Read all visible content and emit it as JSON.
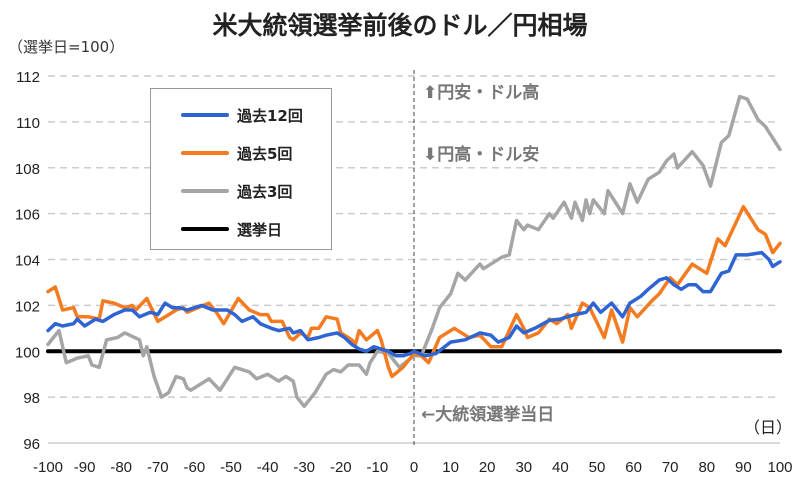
{
  "chart_data": {
    "type": "line",
    "title": "米大統領選挙前後のドル／円相場",
    "ylabel": "（選挙日=100）",
    "xlabel": "（日）",
    "xlim": [
      -100,
      100
    ],
    "ylim": [
      96,
      112
    ],
    "xticks": [
      -100,
      -90,
      -80,
      -70,
      -60,
      -50,
      -40,
      -30,
      -20,
      -10,
      0,
      10,
      20,
      30,
      40,
      50,
      60,
      70,
      80,
      90,
      100
    ],
    "yticks": [
      96,
      98,
      100,
      102,
      104,
      106,
      108,
      110,
      112
    ],
    "grid": "horizontal dashed",
    "legend_position": "top-left",
    "annotations": {
      "up": "⬆円安・ドル高",
      "down": "⬇円高・ドル安",
      "election_day": "←大統領選挙当日"
    },
    "series": [
      {
        "name": "過去12回",
        "color": "#2F64D3",
        "x": [
          -100,
          -98,
          -96,
          -93,
          -92,
          -90,
          -87,
          -85,
          -82,
          -79,
          -77,
          -75,
          -72,
          -70,
          -68,
          -66,
          -64,
          -62,
          -58,
          -55,
          -51,
          -49,
          -47,
          -44,
          -42,
          -39,
          -37,
          -34,
          -33,
          -31,
          -29,
          -26,
          -24,
          -21,
          -19,
          -17,
          -15,
          -13,
          -11,
          -9,
          -7,
          -5,
          -3,
          -1,
          0,
          3,
          6,
          10,
          14,
          18,
          21,
          23,
          26,
          28,
          30,
          33,
          37,
          40,
          44,
          47,
          49,
          51,
          54,
          57,
          59,
          62,
          64,
          67,
          69,
          71,
          73,
          75,
          77,
          79,
          81,
          84,
          86,
          88,
          91,
          95,
          97,
          98,
          100
        ],
        "y": [
          100.9,
          101.2,
          101.1,
          101.2,
          101.4,
          101.1,
          101.4,
          101.3,
          101.6,
          101.8,
          101.8,
          101.5,
          101.7,
          101.6,
          102.1,
          101.9,
          101.9,
          101.8,
          102.0,
          101.8,
          101.8,
          101.6,
          101.3,
          101.5,
          101.2,
          101.0,
          100.9,
          101.0,
          100.8,
          100.9,
          100.5,
          100.6,
          100.7,
          100.8,
          100.6,
          100.3,
          100.1,
          100.0,
          100.2,
          100.1,
          100.0,
          99.8,
          99.8,
          99.9,
          100.0,
          99.8,
          99.9,
          100.4,
          100.5,
          100.8,
          100.7,
          100.4,
          100.6,
          101.1,
          100.8,
          101.0,
          101.35,
          101.4,
          101.6,
          101.7,
          102.1,
          101.7,
          102.1,
          101.5,
          102.1,
          102.4,
          102.7,
          103.1,
          103.2,
          102.9,
          102.7,
          102.9,
          102.9,
          102.6,
          102.6,
          103.4,
          103.5,
          104.2,
          104.2,
          104.3,
          104.0,
          103.7,
          103.9
        ]
      },
      {
        "name": "過去5回",
        "color": "#F47B20",
        "x": [
          -100,
          -98,
          -96,
          -93,
          -92,
          -89,
          -86,
          -85,
          -82,
          -79,
          -77,
          -76,
          -73,
          -70,
          -67,
          -65,
          -63,
          -62,
          -56,
          -54,
          -52,
          -48,
          -45,
          -42,
          -40,
          -39,
          -36,
          -34,
          -33,
          -31,
          -29,
          -28,
          -26,
          -24,
          -21,
          -20,
          -17,
          -16,
          -15,
          -13,
          -10,
          -9,
          -7,
          -6,
          -3,
          0,
          2,
          4,
          7,
          11,
          15,
          18,
          21,
          24,
          28,
          30,
          31,
          34,
          37,
          39,
          42,
          43,
          46,
          48,
          52,
          54,
          57,
          59,
          61,
          65,
          67,
          70,
          72,
          76,
          80,
          83,
          85,
          90,
          94,
          96,
          98,
          100
        ],
        "y": [
          102.6,
          102.8,
          101.8,
          101.9,
          101.5,
          101.5,
          101.4,
          102.2,
          102.1,
          101.9,
          102.0,
          101.8,
          102.3,
          101.3,
          101.6,
          101.8,
          101.9,
          101.7,
          102.1,
          101.7,
          101.2,
          102.3,
          101.8,
          101.6,
          101.6,
          101.3,
          101.3,
          100.6,
          100.5,
          100.8,
          100.6,
          101.0,
          101.0,
          101.5,
          101.4,
          100.8,
          100.5,
          100.3,
          100.9,
          100.5,
          100.9,
          100.5,
          99.3,
          98.9,
          99.3,
          99.9,
          99.8,
          99.5,
          100.6,
          101.0,
          100.6,
          100.7,
          100.2,
          100.2,
          101.6,
          101.0,
          100.6,
          100.8,
          101.4,
          101.2,
          101.6,
          101.0,
          102.1,
          101.9,
          100.6,
          101.8,
          100.4,
          101.9,
          101.5,
          102.2,
          102.5,
          103.2,
          102.9,
          103.8,
          103.4,
          104.9,
          104.6,
          106.3,
          105.3,
          105.1,
          104.3,
          104.7
        ]
      },
      {
        "name": "過去3回",
        "color": "#A5A5A5",
        "x": [
          -100,
          -97,
          -95,
          -92,
          -89,
          -88,
          -86,
          -84,
          -81,
          -79,
          -75,
          -74,
          -73,
          -71,
          -69,
          -67,
          -65,
          -63,
          -62,
          -61,
          -58,
          -56,
          -53,
          -49,
          -45,
          -43,
          -40,
          -37,
          -35,
          -33,
          -32,
          -30,
          -27,
          -24,
          -22,
          -20,
          -18,
          -15,
          -13,
          -12,
          -10,
          -7,
          -4,
          0,
          2,
          5,
          7,
          10,
          12,
          14,
          18,
          19,
          24,
          26,
          28,
          30,
          31,
          34,
          37,
          38,
          41,
          43,
          44,
          46,
          47,
          48,
          49,
          52,
          53,
          57,
          59,
          61,
          64,
          67,
          69,
          71,
          72,
          76,
          79,
          81,
          84,
          86,
          89,
          91,
          94,
          96,
          100
        ],
        "y": [
          100.3,
          100.9,
          99.5,
          99.7,
          99.8,
          99.4,
          99.3,
          100.5,
          100.6,
          100.8,
          100.5,
          99.8,
          100.2,
          98.9,
          98.0,
          98.2,
          98.9,
          98.8,
          98.4,
          98.3,
          98.6,
          98.8,
          98.3,
          99.3,
          99.1,
          98.8,
          99.0,
          98.7,
          98.9,
          98.7,
          98.0,
          97.6,
          98.2,
          99.0,
          99.2,
          99.1,
          99.4,
          99.4,
          99.0,
          99.5,
          100.0,
          99.9,
          99.3,
          99.8,
          99.8,
          101.0,
          101.9,
          102.5,
          103.4,
          103.1,
          103.8,
          103.6,
          104.1,
          104.2,
          105.7,
          105.3,
          105.5,
          105.3,
          106.0,
          105.8,
          106.5,
          105.8,
          106.5,
          105.7,
          106.6,
          106.0,
          106.6,
          106.0,
          107.0,
          106.0,
          107.3,
          106.5,
          107.5,
          107.8,
          108.3,
          108.6,
          108.0,
          108.7,
          108.1,
          107.2,
          109.1,
          109.4,
          111.1,
          111.0,
          110.1,
          109.8,
          108.8
        ]
      },
      {
        "name": "選挙日",
        "color": "#000000",
        "x": [
          -100,
          100
        ],
        "y": [
          100,
          100
        ]
      }
    ]
  }
}
